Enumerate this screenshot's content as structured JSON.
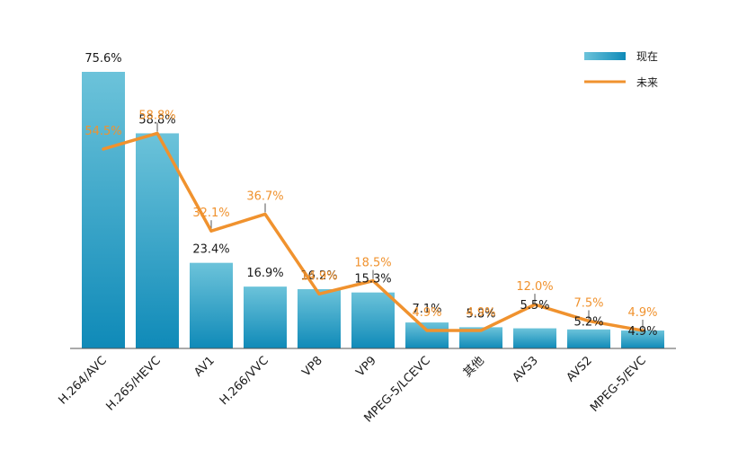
{
  "chart_data": {
    "type": "bar",
    "categories": [
      "H.264/AVC",
      "H.265/HEVC",
      "AV1",
      "H.266/VVC",
      "VP8",
      "VP9",
      "MPEG-5/LCEVC",
      "其他",
      "AVS3",
      "AVS2",
      "MPEG-5/EVC"
    ],
    "series": [
      {
        "name": "现在",
        "type": "bar",
        "values": [
          75.6,
          58.8,
          23.4,
          16.9,
          16.2,
          15.3,
          7.1,
          5.8,
          5.5,
          5.2,
          4.9
        ],
        "labels": [
          "75.6%",
          "58.8%",
          "23.4%",
          "16.9%",
          "16.2%",
          "15.3%",
          "7.1%",
          "5.8%",
          "5.5%",
          "5.2%",
          "4.9%"
        ]
      },
      {
        "name": "未来",
        "type": "line",
        "values": [
          54.5,
          58.8,
          32.1,
          36.7,
          14.9,
          18.5,
          4.9,
          4.9,
          12.0,
          7.5,
          4.9
        ],
        "labels": [
          "54.5%",
          "58.8%",
          "32.1%",
          "36.7%",
          "14.9%",
          "18.5%",
          "4.9%",
          "4.9%",
          "12.0%",
          "7.5%",
          "4.9%"
        ]
      }
    ],
    "ylim": [
      0,
      75.6
    ],
    "grid": false,
    "legend": "top-right",
    "colors": {
      "bar_light": "#6cc3da",
      "bar_dark": "#0f8ab8",
      "line": "#f0922e",
      "text": "#1a1a1a",
      "axis": "#555555"
    }
  }
}
